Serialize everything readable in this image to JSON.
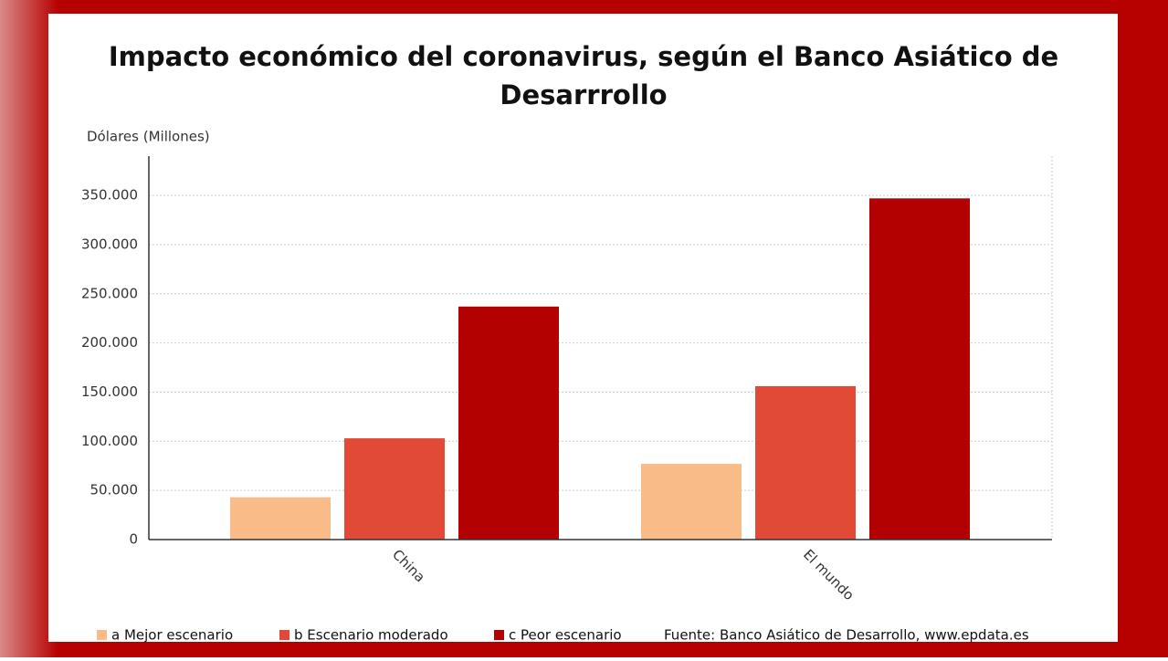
{
  "chart_data": {
    "type": "bar",
    "title": "Impacto económico del coronavirus, según el Banco Asiático de Desarrrollo",
    "y_label": "Dólares (Millones)",
    "source": "Fuente: Banco Asiático de Desarrollo, www.epdata.es",
    "categories": [
      "China",
      "El mundo"
    ],
    "series": [
      {
        "name": "a Mejor escenario",
        "color": "#f9bb87",
        "values": [
          43000,
          77000
        ]
      },
      {
        "name": "b Escenario moderado",
        "color": "#e04a36",
        "values": [
          103000,
          156000
        ]
      },
      {
        "name": "c Peor escenario",
        "color": "#b30000",
        "values": [
          237000,
          347000
        ]
      }
    ],
    "ylim": [
      0,
      390000
    ],
    "yticks": [
      0,
      {
        "value": 50000,
        "label": "50.000"
      },
      {
        "value": 100000,
        "label": "100.000"
      },
      {
        "value": 150000,
        "label": "150.000"
      },
      {
        "value": 200000,
        "label": "200.000"
      },
      {
        "value": 250000,
        "label": "250.000"
      },
      {
        "value": 300000,
        "label": "300.000"
      },
      {
        "value": 350000,
        "label": "350.000"
      }
    ],
    "grid": true
  }
}
